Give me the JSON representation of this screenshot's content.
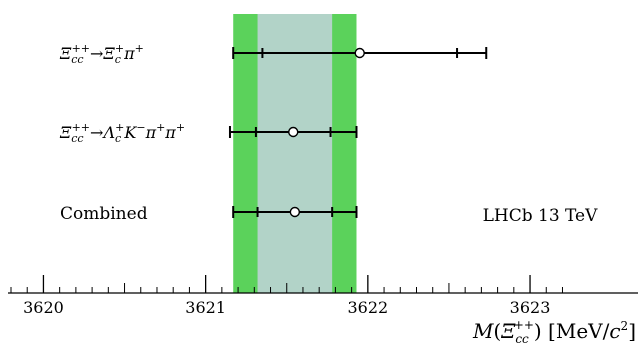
{
  "chart_data": {
    "type": "scatter",
    "x_axis": {
      "label": "M(Ξcc++) [MeV/c²]",
      "label_parts": {
        "prefix": "M(",
        "symbol": "Ξ",
        "sub": "cc",
        "sup": "++",
        "mid": ") [MeV/",
        "c": "c",
        "c_sup": "2",
        "end": "]"
      },
      "range": [
        3619.8,
        3623.25
      ],
      "ticks": [
        3620,
        3621,
        3622,
        3623
      ],
      "tick_labels": [
        "3620",
        "3621",
        "3622",
        "3623"
      ]
    },
    "combined_band": {
      "central": 3621.55,
      "stat_low": 3621.32,
      "stat_high": 3621.78,
      "total_low": 3621.17,
      "total_high": 3621.93,
      "colors": {
        "stat": "#b2d3c8",
        "total": "#5bd25b"
      }
    },
    "measurements": [
      {
        "label": "Ξcc++ → Ξc+ π+",
        "central": 3621.95,
        "stat_low": 3621.35,
        "stat_high": 3622.55,
        "total_low": 3621.17,
        "total_high": 3622.73
      },
      {
        "label": "Ξcc++ → Λc+ K− π+ π+",
        "central": 3621.54,
        "stat_low": 3621.31,
        "stat_high": 3621.77,
        "total_low": 3621.15,
        "total_high": 3621.93
      },
      {
        "label": "Combined",
        "central": 3621.55,
        "stat_low": 3621.32,
        "stat_high": 3621.78,
        "total_low": 3621.17,
        "total_high": 3621.93
      }
    ],
    "annotation": "LHCb 13 TeV",
    "legend": "none",
    "grid": false
  }
}
